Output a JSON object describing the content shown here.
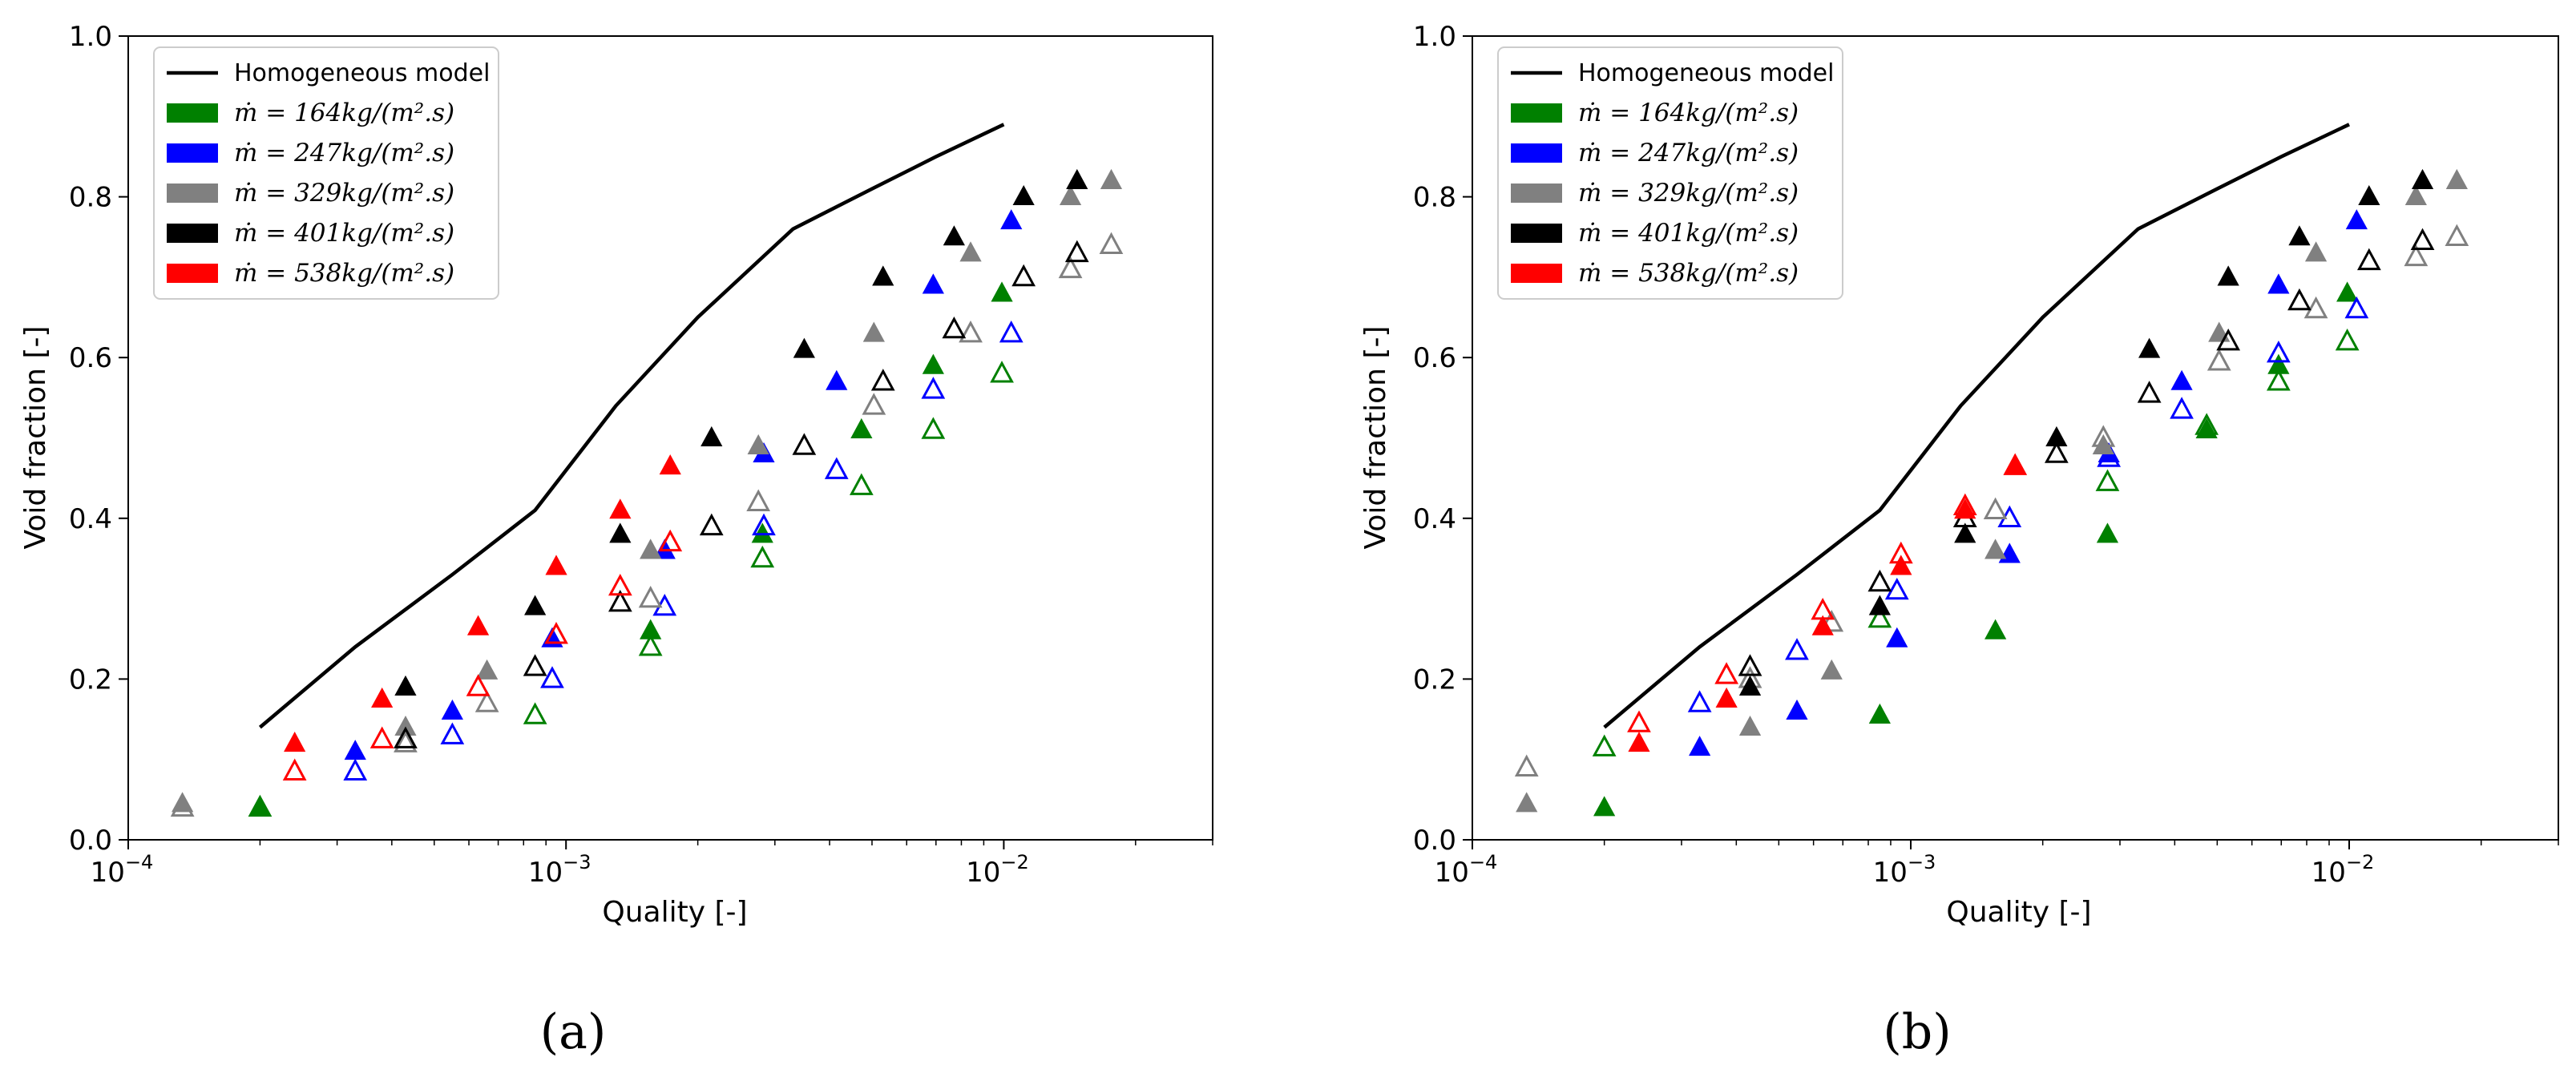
{
  "chart_data": [
    {
      "type": "scatter",
      "panel_label": "(a)",
      "xlabel": "Quality [-]",
      "ylabel": "Void fraction [-]",
      "xscale": "log",
      "xlim": [
        0.0001,
        0.03
      ],
      "ylim": [
        0,
        1.0
      ],
      "x_ticks": [
        {
          "v": 0.0001,
          "base": "10",
          "exp": "−4"
        },
        {
          "v": 0.001,
          "base": "10",
          "exp": "−3"
        },
        {
          "v": 0.01,
          "base": "10",
          "exp": "−2"
        }
      ],
      "y_ticks": [
        {
          "v": 0,
          "label": "0.0"
        },
        {
          "v": 0.2,
          "label": "0.2"
        },
        {
          "v": 0.4,
          "label": "0.4"
        },
        {
          "v": 0.6,
          "label": "0.6"
        },
        {
          "v": 0.8,
          "label": "0.8"
        },
        {
          "v": 1.0,
          "label": "1.0"
        }
      ],
      "legend_position": "upper-left",
      "legend": [
        {
          "kind": "line",
          "color": "#000000",
          "label": "Homogeneous model"
        },
        {
          "kind": "patch",
          "color": "#008000",
          "prefix": "ṁ = ",
          "label": "164kg/(m².s)"
        },
        {
          "kind": "patch",
          "color": "#0000ff",
          "prefix": "ṁ = ",
          "label": "247kg/(m².s)"
        },
        {
          "kind": "patch",
          "color": "#808080",
          "prefix": "ṁ = ",
          "label": "329kg/(m².s)"
        },
        {
          "kind": "patch",
          "color": "#000000",
          "prefix": "ṁ = ",
          "label": "401kg/(m².s)"
        },
        {
          "kind": "patch",
          "color": "#ff0000",
          "prefix": "ṁ = ",
          "label": "538kg/(m².s)"
        }
      ],
      "homogeneous_line": {
        "x": [
          0.0002,
          0.00033,
          0.00055,
          0.00085,
          0.0013,
          0.002,
          0.0033,
          0.005,
          0.007,
          0.01
        ],
        "y": [
          0.14,
          0.24,
          0.33,
          0.41,
          0.54,
          0.65,
          0.76,
          0.81,
          0.85,
          0.89
        ]
      },
      "series": [
        {
          "name": "164 measured",
          "color": "#008000",
          "fill": true,
          "x": [
            0.0002,
            0.00156,
            0.00281,
            0.00473,
            0.0069,
            0.0099
          ],
          "y": [
            0.04,
            0.26,
            0.38,
            0.51,
            0.59,
            0.68
          ]
        },
        {
          "name": "164 predicted",
          "color": "#008000",
          "fill": false,
          "x": [
            0.0002,
            0.00085,
            0.00156,
            0.00281,
            0.00473,
            0.0069,
            0.0099
          ],
          "y": [
            0.04,
            0.155,
            0.24,
            0.35,
            0.44,
            0.51,
            0.58
          ]
        },
        {
          "name": "247 measured",
          "color": "#0000ff",
          "fill": true,
          "x": [
            0.00033,
            0.00055,
            0.00093,
            0.00168,
            0.00283,
            0.00415,
            0.0069,
            0.0104
          ],
          "y": [
            0.11,
            0.16,
            0.25,
            0.36,
            0.48,
            0.57,
            0.69,
            0.77
          ]
        },
        {
          "name": "247 predicted",
          "color": "#0000ff",
          "fill": false,
          "x": [
            0.00033,
            0.00055,
            0.00093,
            0.00168,
            0.00283,
            0.00415,
            0.0069,
            0.0104
          ],
          "y": [
            0.085,
            0.13,
            0.2,
            0.29,
            0.39,
            0.46,
            0.56,
            0.63
          ]
        },
        {
          "name": "329 measured",
          "color": "#808080",
          "fill": true,
          "x": [
            0.000133,
            0.00043,
            0.00066,
            0.00156,
            0.00275,
            0.00505,
            0.0084,
            0.0142,
            0.0176
          ],
          "y": [
            0.045,
            0.14,
            0.21,
            0.36,
            0.49,
            0.63,
            0.73,
            0.8,
            0.82
          ]
        },
        {
          "name": "329 predicted",
          "color": "#808080",
          "fill": false,
          "x": [
            0.000133,
            0.00043,
            0.00066,
            0.00156,
            0.00275,
            0.00505,
            0.0084,
            0.0142,
            0.0176
          ],
          "y": [
            0.04,
            0.12,
            0.17,
            0.3,
            0.42,
            0.54,
            0.63,
            0.71,
            0.74
          ]
        },
        {
          "name": "401 measured",
          "color": "#000000",
          "fill": true,
          "x": [
            0.00043,
            0.00085,
            0.00133,
            0.00215,
            0.0035,
            0.0053,
            0.0077,
            0.0111,
            0.0147
          ],
          "y": [
            0.19,
            0.29,
            0.38,
            0.5,
            0.61,
            0.7,
            0.75,
            0.8,
            0.82
          ]
        },
        {
          "name": "401 predicted",
          "color": "#000000",
          "fill": false,
          "x": [
            0.00043,
            0.00085,
            0.00133,
            0.00215,
            0.0035,
            0.0053,
            0.0077,
            0.0111,
            0.0147
          ],
          "y": [
            0.125,
            0.215,
            0.295,
            0.39,
            0.49,
            0.57,
            0.635,
            0.7,
            0.73
          ]
        },
        {
          "name": "538 measured",
          "color": "#ff0000",
          "fill": true,
          "x": [
            0.00024,
            0.00038,
            0.00063,
            0.00095,
            0.00133,
            0.00173
          ],
          "y": [
            0.12,
            0.175,
            0.265,
            0.34,
            0.41,
            0.465
          ]
        },
        {
          "name": "538 predicted",
          "color": "#ff0000",
          "fill": false,
          "x": [
            0.00024,
            0.00038,
            0.00063,
            0.00095,
            0.00133,
            0.00173
          ],
          "y": [
            0.085,
            0.125,
            0.19,
            0.255,
            0.315,
            0.37
          ]
        }
      ]
    },
    {
      "type": "scatter",
      "panel_label": "(b)",
      "xlabel": "Quality [-]",
      "ylabel": "Void fraction [-]",
      "xscale": "log",
      "xlim": [
        0.0001,
        0.03
      ],
      "ylim": [
        0,
        1.0
      ],
      "x_ticks": [
        {
          "v": 0.0001,
          "base": "10",
          "exp": "−4"
        },
        {
          "v": 0.001,
          "base": "10",
          "exp": "−3"
        },
        {
          "v": 0.01,
          "base": "10",
          "exp": "−2"
        }
      ],
      "y_ticks": [
        {
          "v": 0,
          "label": "0.0"
        },
        {
          "v": 0.2,
          "label": "0.2"
        },
        {
          "v": 0.4,
          "label": "0.4"
        },
        {
          "v": 0.6,
          "label": "0.6"
        },
        {
          "v": 0.8,
          "label": "0.8"
        },
        {
          "v": 1.0,
          "label": "1.0"
        }
      ],
      "legend_position": "upper-left",
      "legend": [
        {
          "kind": "line",
          "color": "#000000",
          "label": "Homogeneous model"
        },
        {
          "kind": "patch",
          "color": "#008000",
          "prefix": "ṁ = ",
          "label": "164kg/(m².s)"
        },
        {
          "kind": "patch",
          "color": "#0000ff",
          "prefix": "ṁ = ",
          "label": "247kg/(m².s)"
        },
        {
          "kind": "patch",
          "color": "#808080",
          "prefix": "ṁ = ",
          "label": "329kg/(m².s)"
        },
        {
          "kind": "patch",
          "color": "#000000",
          "prefix": "ṁ = ",
          "label": "401kg/(m².s)"
        },
        {
          "kind": "patch",
          "color": "#ff0000",
          "prefix": "ṁ = ",
          "label": "538kg/(m².s)"
        }
      ],
      "homogeneous_line": {
        "x": [
          0.0002,
          0.00033,
          0.00055,
          0.00085,
          0.0013,
          0.002,
          0.0033,
          0.005,
          0.007,
          0.01
        ],
        "y": [
          0.14,
          0.24,
          0.33,
          0.41,
          0.54,
          0.65,
          0.76,
          0.81,
          0.85,
          0.89
        ]
      },
      "series": [
        {
          "name": "164 measured",
          "color": "#008000",
          "fill": true,
          "x": [
            0.0002,
            0.00085,
            0.00156,
            0.00281,
            0.00473,
            0.0069,
            0.0099
          ],
          "y": [
            0.04,
            0.155,
            0.26,
            0.38,
            0.51,
            0.59,
            0.68
          ]
        },
        {
          "name": "164 predicted",
          "color": "#008000",
          "fill": false,
          "x": [
            0.0002,
            0.00085,
            0.00281,
            0.00473,
            0.0069,
            0.0099
          ],
          "y": [
            0.115,
            0.275,
            0.445,
            0.515,
            0.57,
            0.62
          ]
        },
        {
          "name": "247 measured",
          "color": "#0000ff",
          "fill": true,
          "x": [
            0.00033,
            0.00055,
            0.00093,
            0.00168,
            0.00283,
            0.00415,
            0.0069,
            0.0104
          ],
          "y": [
            0.115,
            0.16,
            0.25,
            0.355,
            0.48,
            0.57,
            0.69,
            0.77
          ]
        },
        {
          "name": "247 predicted",
          "color": "#0000ff",
          "fill": false,
          "x": [
            0.00033,
            0.00055,
            0.00093,
            0.00168,
            0.00283,
            0.00415,
            0.0069,
            0.0104
          ],
          "y": [
            0.17,
            0.235,
            0.31,
            0.4,
            0.475,
            0.535,
            0.605,
            0.66
          ]
        },
        {
          "name": "329 measured",
          "color": "#808080",
          "fill": true,
          "x": [
            0.000133,
            0.00043,
            0.00066,
            0.00156,
            0.00275,
            0.00505,
            0.0084,
            0.0142,
            0.0176
          ],
          "y": [
            0.045,
            0.14,
            0.21,
            0.36,
            0.49,
            0.63,
            0.73,
            0.8,
            0.82
          ]
        },
        {
          "name": "329 predicted",
          "color": "#808080",
          "fill": false,
          "x": [
            0.000133,
            0.00043,
            0.00066,
            0.00156,
            0.00275,
            0.00505,
            0.0084,
            0.0142,
            0.0176
          ],
          "y": [
            0.09,
            0.2,
            0.27,
            0.41,
            0.5,
            0.595,
            0.66,
            0.725,
            0.75
          ]
        },
        {
          "name": "401 measured",
          "color": "#000000",
          "fill": true,
          "x": [
            0.00043,
            0.00085,
            0.00133,
            0.00215,
            0.0035,
            0.0053,
            0.0077,
            0.0111,
            0.0147
          ],
          "y": [
            0.19,
            0.29,
            0.38,
            0.5,
            0.61,
            0.7,
            0.75,
            0.8,
            0.82
          ]
        },
        {
          "name": "401 predicted",
          "color": "#000000",
          "fill": false,
          "x": [
            0.00043,
            0.00085,
            0.00133,
            0.00215,
            0.0035,
            0.0053,
            0.0077,
            0.0111,
            0.0147
          ],
          "y": [
            0.215,
            0.32,
            0.4,
            0.48,
            0.555,
            0.62,
            0.67,
            0.72,
            0.745
          ]
        },
        {
          "name": "538 measured",
          "color": "#ff0000",
          "fill": true,
          "x": [
            0.00024,
            0.00038,
            0.00063,
            0.00095,
            0.00133,
            0.00173
          ],
          "y": [
            0.12,
            0.175,
            0.265,
            0.34,
            0.41,
            0.465
          ]
        },
        {
          "name": "538 predicted",
          "color": "#ff0000",
          "fill": false,
          "x": [
            0.00024,
            0.00038,
            0.00063,
            0.00095,
            0.00133,
            0.00173
          ],
          "y": [
            0.145,
            0.205,
            0.285,
            0.355,
            0.415,
            0.465
          ]
        }
      ]
    }
  ]
}
